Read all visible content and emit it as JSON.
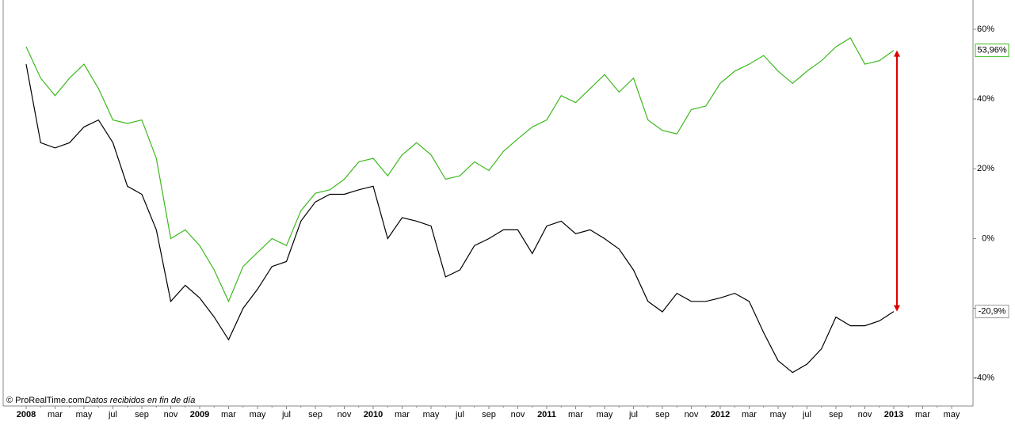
{
  "chart_data": {
    "type": "line",
    "source": "© ProRealTime.com",
    "source_note": "Datos recibidos en fin de día",
    "categories": [
      "2008",
      null,
      "mar",
      null,
      "may",
      null,
      "jul",
      null,
      "sep",
      null,
      "nov",
      null,
      "2009",
      null,
      "mar",
      null,
      "may",
      null,
      "jul",
      null,
      "sep",
      null,
      "nov",
      null,
      "2010",
      null,
      "mar",
      null,
      "may",
      null,
      "jul",
      null,
      "sep",
      null,
      "nov",
      null,
      "2011",
      null,
      "mar",
      null,
      "may",
      null,
      "jul",
      null,
      "sep",
      null,
      "nov",
      null,
      "2012",
      null,
      "mar",
      null,
      "may",
      null,
      "jul",
      null,
      "sep",
      null,
      "nov",
      null,
      "2013",
      null,
      "mar",
      null,
      "may"
    ],
    "series": [
      {
        "color": "#3cb91e",
        "values": [
          55,
          46,
          41,
          46,
          50,
          43,
          34,
          33,
          34,
          23,
          0,
          2.5,
          -2,
          -9,
          -18,
          -8,
          -4,
          0,
          -2,
          8,
          13,
          14,
          17,
          22,
          23,
          18,
          24,
          27.5,
          24,
          17,
          18,
          22,
          19.5,
          25,
          28.6,
          32,
          34,
          41,
          39,
          43,
          47,
          42,
          46,
          34,
          31,
          30,
          37,
          38,
          44.5,
          48,
          50,
          52.5,
          48,
          44.5,
          48,
          51,
          55,
          57.5,
          50,
          51,
          53.96,
          null,
          null,
          null,
          null
        ],
        "value_labels": [
          null,
          null,
          null,
          null,
          null,
          null,
          null,
          null,
          null,
          null,
          null,
          null,
          null,
          null,
          null,
          null,
          null,
          null,
          null,
          null,
          null,
          null,
          null,
          null,
          null,
          null,
          null,
          null,
          null,
          null,
          null,
          null,
          null,
          null,
          null,
          null,
          null,
          null,
          null,
          null,
          null,
          null,
          null,
          null,
          null,
          null,
          null,
          null,
          null,
          null,
          null,
          null,
          null,
          null,
          null,
          null,
          null,
          null,
          null,
          null,
          "53,96%",
          null,
          null,
          null,
          null
        ]
      },
      {
        "color": "#000000",
        "values": [
          50,
          27.5,
          26,
          27.5,
          32,
          34,
          27.5,
          15,
          12.7,
          2.5,
          -18,
          -13.4,
          -17,
          -22.5,
          -29,
          -20,
          -14.5,
          -8,
          -6.6,
          5,
          10.5,
          12.7,
          12.7,
          14,
          15,
          0,
          6,
          5,
          3.6,
          -11,
          -9,
          -2,
          0,
          2.5,
          2.5,
          -4.3,
          3.6,
          5,
          1.4,
          2.5,
          0,
          -3,
          -9,
          -18,
          -21,
          -15.7,
          -18,
          -18,
          -17,
          -15.7,
          -18,
          -27,
          -35,
          -38.4,
          -36,
          -31.6,
          -22.5,
          -25,
          -25,
          -23.6,
          -20.9,
          null,
          null,
          null,
          null
        ],
        "value_labels": [
          null,
          null,
          null,
          null,
          null,
          null,
          null,
          null,
          null,
          null,
          null,
          null,
          null,
          null,
          null,
          null,
          null,
          null,
          null,
          null,
          null,
          null,
          null,
          null,
          null,
          null,
          null,
          null,
          null,
          null,
          null,
          null,
          null,
          null,
          null,
          null,
          null,
          null,
          null,
          null,
          null,
          null,
          null,
          null,
          null,
          null,
          null,
          null,
          null,
          null,
          null,
          null,
          null,
          null,
          null,
          null,
          null,
          null,
          null,
          null,
          "-20,9%",
          null,
          null,
          null,
          null
        ]
      }
    ],
    "ylim": [
      -48,
      68.4
    ],
    "yticks": [
      {
        "value": -40,
        "label": "-40%"
      },
      {
        "value": -20,
        "label": "-20%"
      },
      {
        "value": 0,
        "label": "0%"
      },
      {
        "value": 20,
        "label": "20%"
      },
      {
        "value": 40,
        "label": "40%"
      },
      {
        "value": 60,
        "label": "60%"
      }
    ],
    "arrow_color": "#dd0000"
  }
}
